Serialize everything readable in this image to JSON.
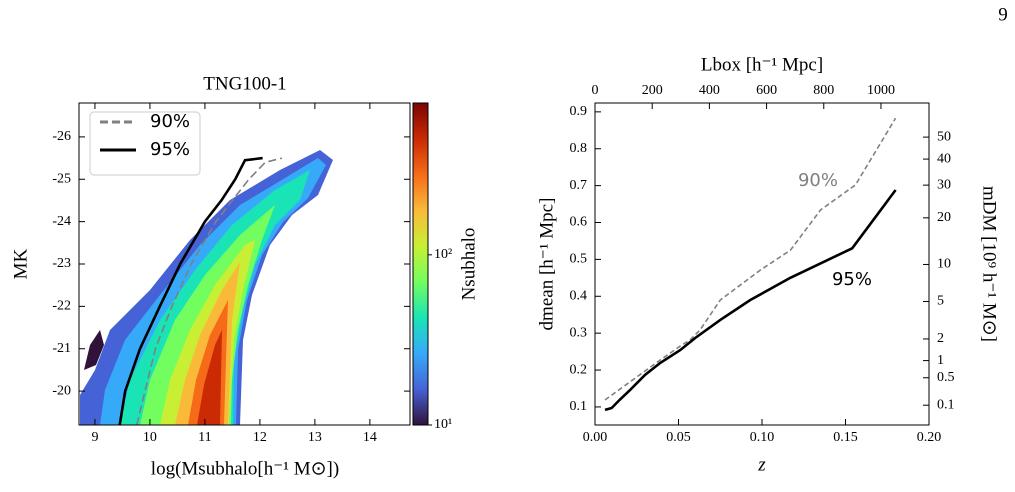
{
  "page_number": "9",
  "chart_data": [
    {
      "type": "line",
      "title": "TNG100-1",
      "x_label": "log(Msubhalo[h⁻¹ M⊙])",
      "y_label": "MK",
      "xlim": [
        8.71,
        14.73
      ],
      "ylim": [
        -19.2,
        -26.8
      ],
      "xticks": [
        9,
        10,
        11,
        12,
        13,
        14
      ],
      "yticks": [
        -20,
        -21,
        -22,
        -23,
        -24,
        -25,
        -26
      ],
      "legend": "upper left",
      "series": [
        {
          "name": "90%",
          "color": "#808080",
          "dashed": true,
          "x": [
            9.76,
            9.91,
            10.1,
            10.4,
            10.75,
            11.2,
            11.5,
            11.8,
            12.1,
            12.4
          ],
          "values": [
            -19.2,
            -20,
            -21,
            -22,
            -23,
            -24,
            -24.5,
            -25,
            -25.4,
            -25.5
          ]
        },
        {
          "name": "95%",
          "color": "#000000",
          "dashed": false,
          "x": [
            9.45,
            9.55,
            9.82,
            10.18,
            10.55,
            11.0,
            11.3,
            11.55,
            11.73,
            12.05
          ],
          "values": [
            -19.2,
            -20,
            -21,
            -22,
            -23,
            -24,
            -24.5,
            -25,
            -25.45,
            -25.5
          ]
        }
      ],
      "colorbar": {
        "label": "Nsubhalo",
        "scale": "log",
        "lim": [
          10,
          780
        ],
        "ticks": [
          {
            "value": 10,
            "label": "10¹"
          },
          {
            "value": 100,
            "label": "10²"
          }
        ],
        "colors": [
          "#30123b",
          "#4662d7",
          "#36aaf9",
          "#1ae4b6",
          "#72fe5e",
          "#c8ef34",
          "#faba39",
          "#f66b19",
          "#ca2a04",
          "#7a0403"
        ]
      }
    },
    {
      "type": "line",
      "x_label": "z",
      "y_label": "dmean [h⁻¹ Mpc]",
      "x2_label": "Lbox [h⁻¹ Mpc]",
      "y2_label": "mDM [10⁹ h⁻¹ M⊙]",
      "xlim": [
        0,
        0.2
      ],
      "ylim": [
        0.051,
        0.924
      ],
      "xticks": [
        {
          "value": 0,
          "label": "0.00"
        },
        0.05,
        {
          "value": 0.1,
          "label": "0.10"
        },
        0.15,
        {
          "value": 0.2,
          "label": "0.20"
        }
      ],
      "yticks": [
        0.1,
        0.2,
        0.3,
        0.4,
        0.5,
        0.6,
        0.7,
        0.8,
        0.9
      ],
      "x2lim": [
        0,
        1168
      ],
      "x2ticks": [
        0,
        200,
        400,
        600,
        800,
        1000
      ],
      "y2lim": [
        0.0116,
        68.6
      ],
      "y2scale": "cbrt",
      "y2ticks": [
        0.1,
        0.5,
        1,
        2,
        5,
        10,
        20,
        30,
        40,
        50
      ],
      "legend": "inline",
      "series": [
        {
          "name": "90%",
          "color": "#808080",
          "dashed": true,
          "x": [
            0.006,
            0.021,
            0.039,
            0.051,
            0.057,
            0.063,
            0.075,
            0.099,
            0.117,
            0.135,
            0.156,
            0.18
          ],
          "values": [
            0.119,
            0.168,
            0.227,
            0.265,
            0.282,
            0.309,
            0.39,
            0.471,
            0.525,
            0.634,
            0.702,
            0.883
          ]
        },
        {
          "name": "95%",
          "color": "#000000",
          "dashed": false,
          "x": [
            0.006,
            0.01,
            0.015,
            0.021,
            0.03,
            0.039,
            0.051,
            0.06,
            0.075,
            0.093,
            0.117,
            0.154,
            0.18
          ],
          "values": [
            0.092,
            0.097,
            0.12,
            0.146,
            0.187,
            0.219,
            0.254,
            0.287,
            0.336,
            0.39,
            0.45,
            0.53,
            0.688
          ]
        }
      ]
    }
  ]
}
